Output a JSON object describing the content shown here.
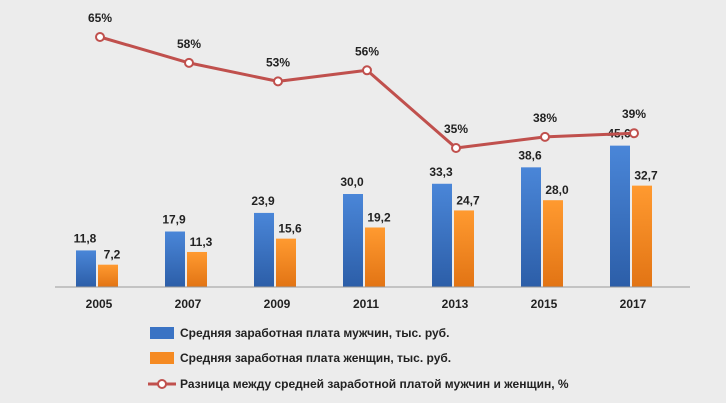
{
  "colors": {
    "background": "#ececec",
    "men": "#3a73c4",
    "women": "#f58a22",
    "gap": "#c0504d"
  },
  "chart_data": {
    "type": "bar",
    "categories": [
      "2005",
      "2007",
      "2009",
      "2011",
      "2013",
      "2015",
      "2017"
    ],
    "series": [
      {
        "name": "Средняя заработная плата  мужчин, тыс. руб.",
        "type": "bar",
        "values": [
          11.8,
          17.9,
          23.9,
          30.0,
          33.3,
          38.6,
          45.6
        ],
        "labels": [
          "11,8",
          "17,9",
          "23,9",
          "30,0",
          "33,3",
          "38,6",
          "45,6"
        ]
      },
      {
        "name": "Средняя заработная плата  женщин, тыс. руб.",
        "type": "bar",
        "values": [
          7.2,
          11.3,
          15.6,
          19.2,
          24.7,
          28.0,
          32.7
        ],
        "labels": [
          "7,2",
          "11,3",
          "15,6",
          "19,2",
          "24,7",
          "28,0",
          "32,7"
        ]
      },
      {
        "name": "Разница между средней заработной платой мужчин и женщин, %",
        "type": "line",
        "values": [
          65,
          58,
          53,
          56,
          35,
          38,
          39
        ],
        "labels": [
          "65%",
          "58%",
          "53%",
          "56%",
          "35%",
          "38%",
          "39%"
        ]
      }
    ],
    "legend_position": "bottom",
    "grid": false
  }
}
